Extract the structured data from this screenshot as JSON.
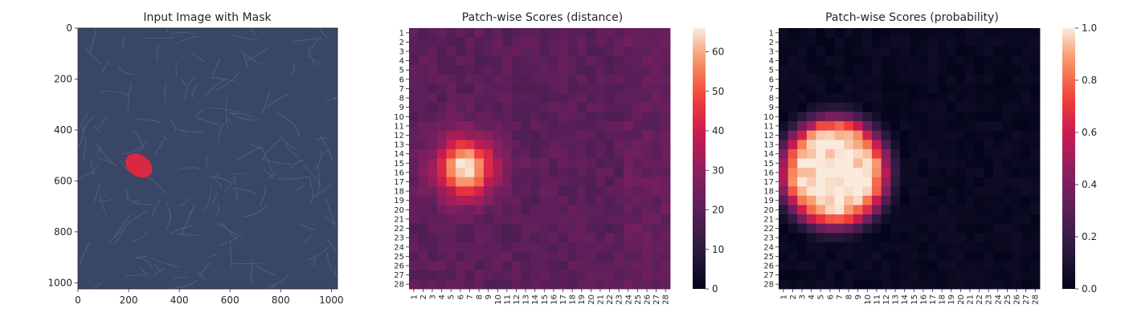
{
  "chart_data": [
    {
      "type": "image",
      "title": "Input Image with Mask",
      "xlim": [
        0,
        1024
      ],
      "ylim": [
        1024,
        0
      ],
      "xticks": [
        0,
        200,
        400,
        600,
        800,
        1000
      ],
      "yticks": [
        0,
        200,
        400,
        600,
        800,
        1000
      ],
      "mask": {
        "center": [
          240,
          540
        ],
        "radius": [
          58,
          42
        ],
        "color": "#e0283f"
      }
    },
    {
      "type": "heatmap",
      "title": "Patch-wise Scores (distance)",
      "grid": [
        28,
        28
      ],
      "xticklabels": [
        "1",
        "2",
        "3",
        "4",
        "5",
        "6",
        "7",
        "8",
        "9",
        "10",
        "11",
        "12",
        "13",
        "14",
        "15",
        "16",
        "17",
        "18",
        "19",
        "20",
        "21",
        "22",
        "23",
        "24",
        "25",
        "26",
        "27",
        "28"
      ],
      "yticklabels": [
        "1",
        "2",
        "3",
        "4",
        "5",
        "6",
        "7",
        "8",
        "9",
        "10",
        "11",
        "12",
        "13",
        "14",
        "15",
        "16",
        "17",
        "18",
        "19",
        "20",
        "21",
        "22",
        "23",
        "24",
        "25",
        "26",
        "27",
        "28"
      ],
      "colorbar": {
        "min": 0,
        "max": 66,
        "ticks": [
          0,
          10,
          20,
          30,
          40,
          50,
          60
        ]
      },
      "baseline": 20,
      "hotspot": {
        "col": 6.5,
        "row": 15.5,
        "peak": 66
      }
    },
    {
      "type": "heatmap",
      "title": "Patch-wise Scores (probability)",
      "grid": [
        28,
        28
      ],
      "xticklabels": [
        "1",
        "2",
        "3",
        "4",
        "5",
        "6",
        "7",
        "8",
        "9",
        "10",
        "11",
        "12",
        "13",
        "14",
        "15",
        "16",
        "17",
        "18",
        "19",
        "20",
        "21",
        "22",
        "23",
        "24",
        "25",
        "26",
        "27",
        "28"
      ],
      "yticklabels": [
        "1",
        "2",
        "3",
        "4",
        "5",
        "6",
        "7",
        "8",
        "9",
        "10",
        "11",
        "12",
        "13",
        "14",
        "15",
        "16",
        "17",
        "18",
        "19",
        "20",
        "21",
        "22",
        "23",
        "24",
        "25",
        "26",
        "27",
        "28"
      ],
      "colorbar": {
        "min": 0,
        "max": 1,
        "ticks": [
          "0.0",
          "0.2",
          "0.4",
          "0.6",
          "0.8",
          "1.0"
        ]
      },
      "hotspot": {
        "col": 6.5,
        "row": 16,
        "peak": 1.0
      }
    }
  ],
  "colors": {
    "leather": "#3a4666",
    "leather_line": "#6f7ea3",
    "mask": "#e0283f"
  }
}
